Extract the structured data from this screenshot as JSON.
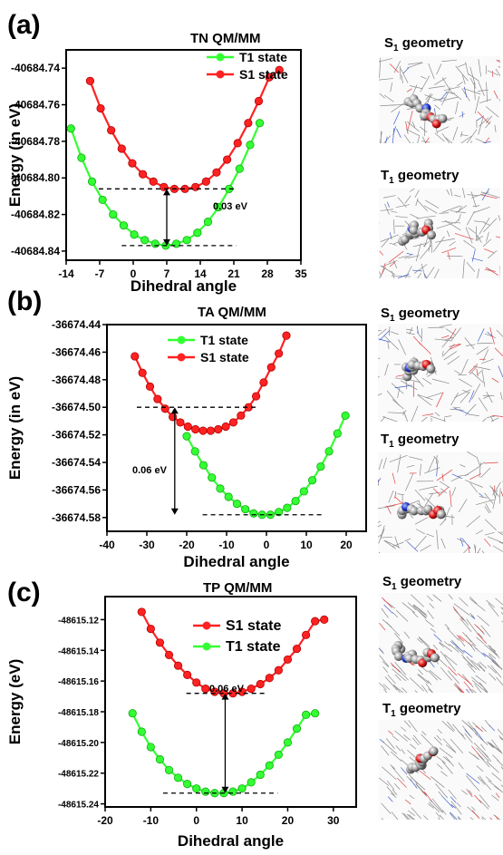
{
  "panels": [
    {
      "letter": "(a)",
      "geom_labels": [
        {
          "main": "S",
          "sub": "1",
          "rest": " geometry"
        },
        {
          "main": "T",
          "sub": "1",
          "rest": " geometry"
        }
      ]
    },
    {
      "letter": "(b)",
      "geom_labels": [
        {
          "main": "S",
          "sub": "1",
          "rest": " geometry"
        },
        {
          "main": "T",
          "sub": "1",
          "rest": " geometry"
        }
      ]
    },
    {
      "letter": "(c)",
      "geom_labels": [
        {
          "main": "S",
          "sub": "1",
          "rest": " geometry"
        },
        {
          "main": "T",
          "sub": "1",
          "rest": " geometry"
        }
      ]
    }
  ],
  "chart_data": [
    {
      "type": "line",
      "title": "TN QM/MM",
      "xlabel": "Dihedral angle",
      "ylabel": "Energy (in eV)",
      "xlim": [
        -14,
        35
      ],
      "ylim": [
        -40684.845,
        -40684.73
      ],
      "xticks": [
        -14,
        -7,
        0,
        7,
        14,
        21,
        28,
        35
      ],
      "yticks": [
        -40684.74,
        -40684.76,
        -40684.78,
        -40684.8,
        -40684.82,
        -40684.84
      ],
      "ytick_labels": [
        "-40684.74",
        "-40684.76",
        "-40684.78",
        "-40684.80",
        "-40684.82",
        "-40684.84"
      ],
      "legend_position": "top",
      "gap_label": "0.03 eV",
      "series": [
        {
          "name": "T1 state",
          "color": "#33ff33",
          "x": [
            -13,
            -10.8,
            -8.6,
            -6.4,
            -4.2,
            -2,
            0.2,
            2.4,
            4.6,
            6.8,
            9,
            11.2,
            13.4,
            15.6,
            17.8,
            20,
            22.2,
            24.4,
            26.4
          ],
          "y": [
            -40684.773,
            -40684.789,
            -40684.802,
            -40684.812,
            -40684.82,
            -40684.826,
            -40684.831,
            -40684.834,
            -40684.836,
            -40684.837,
            -40684.836,
            -40684.834,
            -40684.83,
            -40684.824,
            -40684.816,
            -40684.806,
            -40684.795,
            -40684.782,
            -40684.77
          ]
        },
        {
          "name": "S1 state",
          "color": "#ff2222",
          "x": [
            -9,
            -6.8,
            -4.6,
            -2.4,
            -0.2,
            2,
            4.2,
            6.4,
            8.6,
            10.8,
            13,
            15.2,
            17.4,
            19.6,
            21.8,
            24,
            26.2,
            28.4,
            30.5
          ],
          "y": [
            -40684.747,
            -40684.762,
            -40684.774,
            -40684.784,
            -40684.792,
            -40684.798,
            -40684.802,
            -40684.805,
            -40684.806,
            -40684.806,
            -40684.805,
            -40684.802,
            -40684.797,
            -40684.79,
            -40684.781,
            -40684.77,
            -40684.758,
            -40684.745,
            -40684.741
          ]
        }
      ]
    },
    {
      "type": "line",
      "title": "TA QM/MM",
      "xlabel": "Dihedral angle",
      "ylabel": "Energy (in eV)",
      "xlim": [
        -40,
        25
      ],
      "ylim": [
        -36674.59,
        -36674.44
      ],
      "xticks": [
        -40,
        -30,
        -20,
        -10,
        0,
        10,
        20
      ],
      "yticks": [
        -36674.44,
        -36674.46,
        -36674.48,
        -36674.5,
        -36674.52,
        -36674.54,
        -36674.56,
        -36674.58
      ],
      "ytick_labels": [
        "-36674.44",
        "-36674.46",
        "-36674.48",
        "-36674.50",
        "-36674.52",
        "-36674.54",
        "-36674.56",
        "-36674.58"
      ],
      "legend_position": "top-left",
      "gap_label": "0.06 eV",
      "series": [
        {
          "name": "T1 state",
          "color": "#33ff33",
          "x": [
            -20,
            -17.9,
            -15.8,
            -13.7,
            -11.6,
            -9.5,
            -7.4,
            -5.3,
            -3.2,
            -1.1,
            1,
            3.1,
            5.2,
            7.3,
            9.4,
            11.5,
            13.6,
            15.7,
            17.8,
            19.8
          ],
          "y": [
            -36674.521,
            -36674.532,
            -36674.542,
            -36674.551,
            -36674.559,
            -36674.565,
            -36674.57,
            -36674.574,
            -36674.577,
            -36674.578,
            -36674.578,
            -36674.576,
            -36674.573,
            -36674.568,
            -36674.561,
            -36674.553,
            -36674.543,
            -36674.532,
            -36674.519,
            -36674.506
          ]
        },
        {
          "name": "S1 state",
          "color": "#ff2222",
          "x": [
            -33,
            -31.1,
            -29.2,
            -27.3,
            -25.4,
            -23.5,
            -21.6,
            -19.7,
            -17.8,
            -15.9,
            -14,
            -12.1,
            -10.2,
            -8.3,
            -6.4,
            -4.5,
            -2.6,
            -0.7,
            1.2,
            3.1,
            5
          ],
          "y": [
            -36674.463,
            -36674.475,
            -36674.485,
            -36674.494,
            -36674.501,
            -36674.507,
            -36674.511,
            -36674.514,
            -36674.516,
            -36674.517,
            -36674.517,
            -36674.516,
            -36674.514,
            -36674.511,
            -36674.506,
            -36674.5,
            -36674.492,
            -36674.482,
            -36674.471,
            -36674.461,
            -36674.448
          ]
        }
      ]
    },
    {
      "type": "line",
      "title": "TP QM/MM",
      "xlabel": "Dihedral angle",
      "ylabel": "Energy (eV)",
      "xlim": [
        -20,
        35
      ],
      "ylim": [
        -48615.242,
        -48615.105
      ],
      "xticks": [
        -20,
        -10,
        0,
        10,
        20,
        30
      ],
      "yticks": [
        -48615.12,
        -48615.14,
        -48615.16,
        -48615.18,
        -48615.2,
        -48615.22,
        -48615.24
      ],
      "ytick_labels": [
        "-48615.12",
        "-48615.14",
        "-48615.16",
        "-48615.18",
        "-48615.20",
        "-48615.22",
        "-48615.24"
      ],
      "legend_position": "top",
      "gap_label": "0.06 eV",
      "series": [
        {
          "name": "S1 state",
          "color": "#ff2222",
          "x": [
            -12,
            -10,
            -8,
            -6,
            -4,
            -2,
            0,
            2,
            4,
            6,
            8,
            10,
            12,
            14,
            16,
            18,
            20,
            22,
            24,
            26,
            28
          ],
          "y": [
            -48615.115,
            -48615.126,
            -48615.135,
            -48615.143,
            -48615.15,
            -48615.156,
            -48615.161,
            -48615.165,
            -48615.167,
            -48615.168,
            -48615.168,
            -48615.167,
            -48615.165,
            -48615.162,
            -48615.158,
            -48615.153,
            -48615.146,
            -48615.139,
            -48615.13,
            -48615.121,
            -48615.12
          ]
        },
        {
          "name": "T1 state",
          "color": "#33ff33",
          "x": [
            -14,
            -12,
            -10,
            -8,
            -6,
            -4,
            -2,
            0,
            2,
            4,
            6,
            8,
            10,
            12,
            14,
            16,
            18,
            20,
            22,
            24,
            26
          ],
          "y": [
            -48615.181,
            -48615.193,
            -48615.203,
            -48615.211,
            -48615.218,
            -48615.223,
            -48615.227,
            -48615.23,
            -48615.232,
            -48615.233,
            -48615.233,
            -48615.232,
            -48615.23,
            -48615.226,
            -48615.221,
            -48615.215,
            -48615.208,
            -48615.2,
            -48615.191,
            -48615.182,
            -48615.181
          ]
        }
      ]
    }
  ]
}
